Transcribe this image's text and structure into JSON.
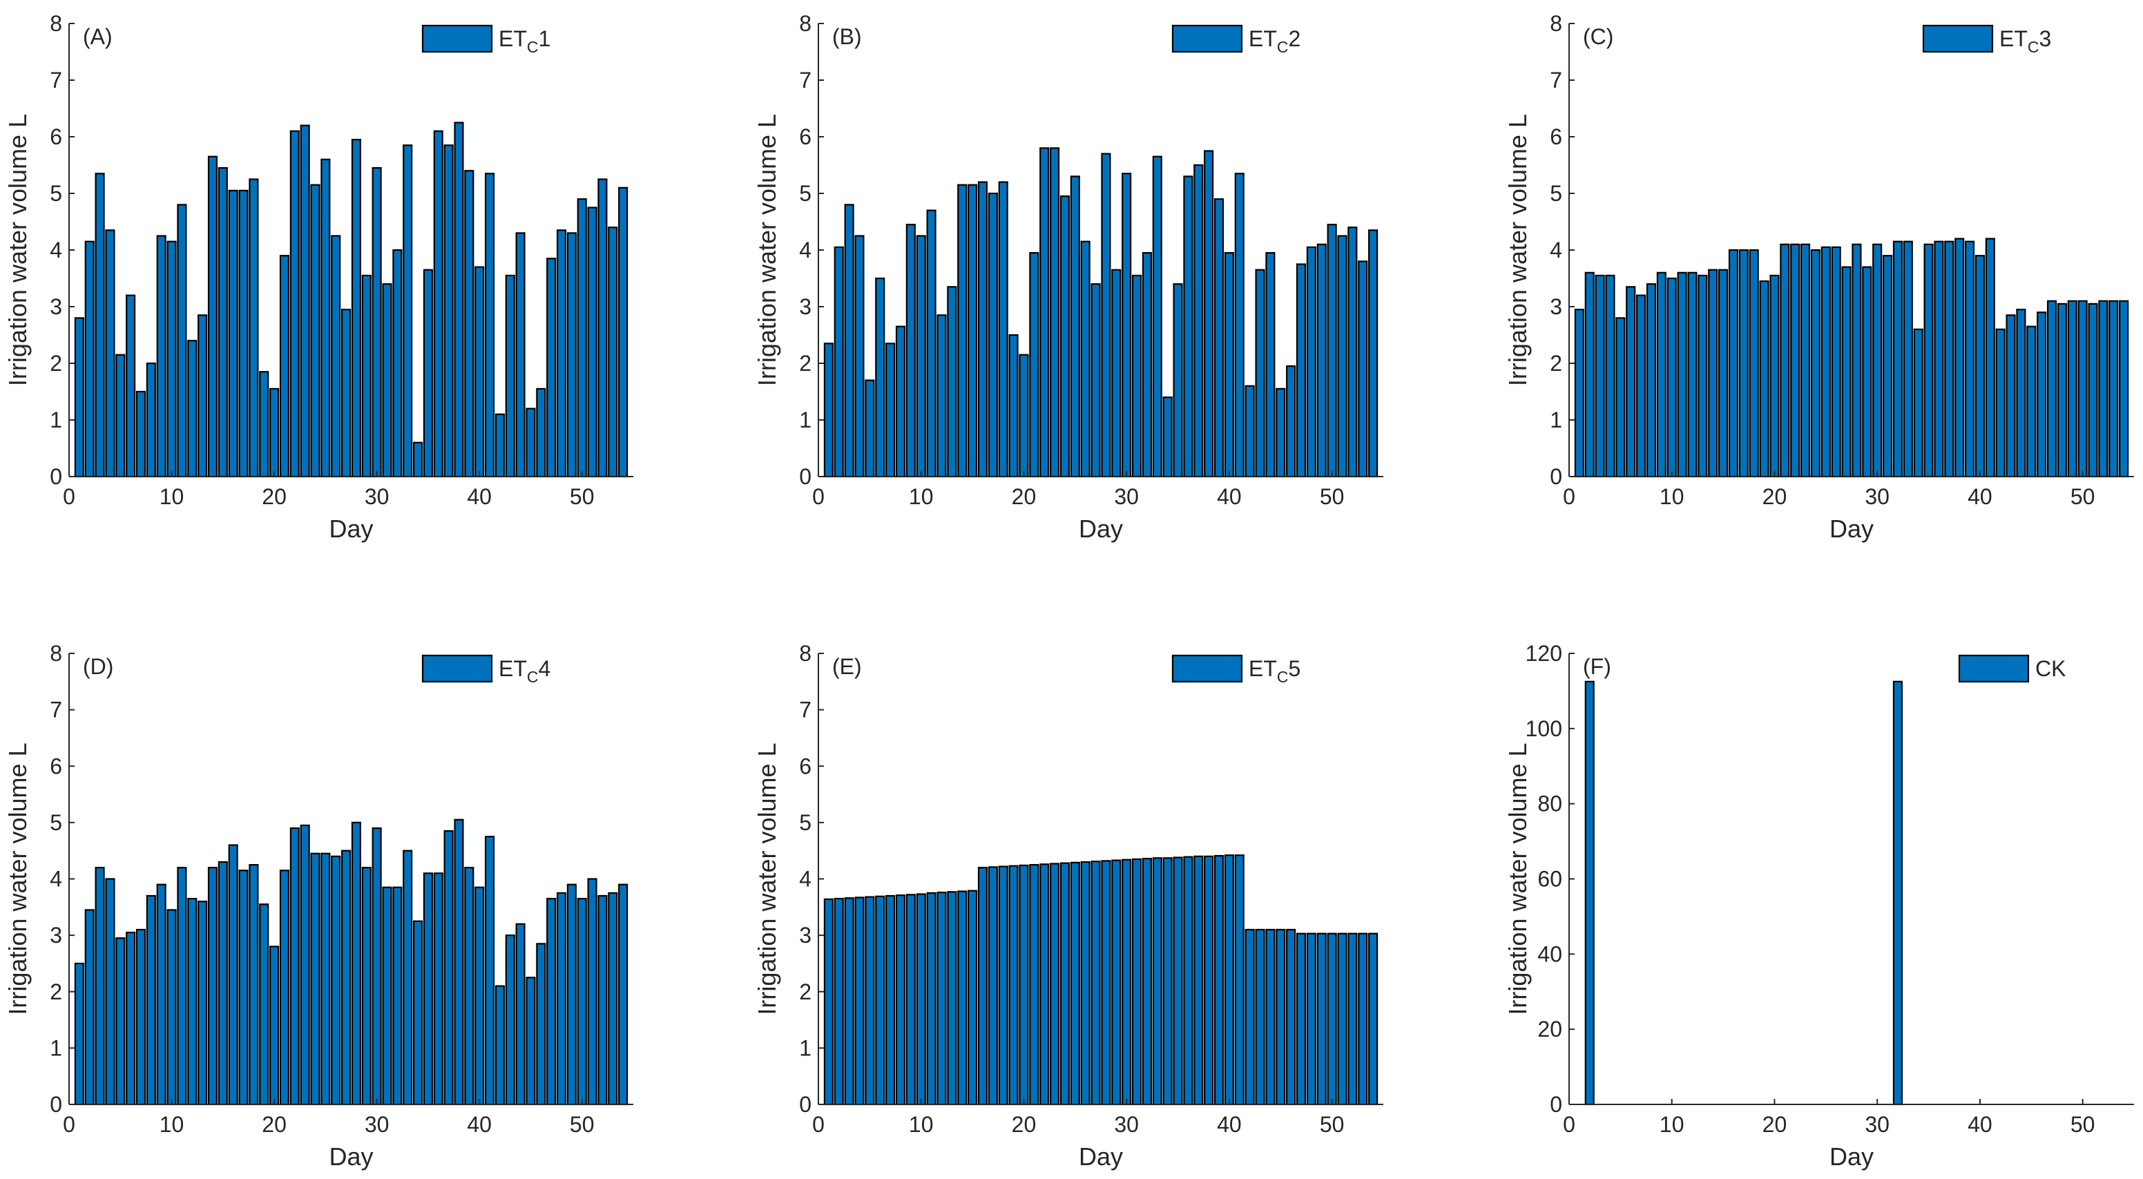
{
  "figure": {
    "bar_color": "#0072BD",
    "edge_color": "#000000",
    "axis_color": "#262626"
  },
  "chart_data": [
    {
      "type": "bar",
      "panel_label": "(A)",
      "legend": {
        "main": "ET",
        "sub": "C",
        "suffix": "1"
      },
      "xlabel": "Day",
      "ylabel": "Irrigation water volume L",
      "xlim": [
        0,
        55
      ],
      "ylim": [
        0,
        8
      ],
      "xticks": [
        0,
        10,
        20,
        30,
        40,
        50
      ],
      "yticks": [
        0,
        1,
        2,
        3,
        4,
        5,
        6,
        7,
        8
      ],
      "x": [
        1,
        2,
        3,
        4,
        5,
        6,
        7,
        8,
        9,
        10,
        11,
        12,
        13,
        14,
        15,
        16,
        17,
        18,
        19,
        20,
        21,
        22,
        23,
        24,
        25,
        26,
        27,
        28,
        29,
        30,
        31,
        32,
        33,
        34,
        35,
        36,
        37,
        38,
        39,
        40,
        41,
        42,
        43,
        44,
        45,
        46,
        47,
        48,
        49,
        50,
        51,
        52,
        53,
        54
      ],
      "values": [
        2.8,
        4.15,
        5.35,
        4.35,
        2.15,
        3.2,
        1.5,
        2.0,
        4.25,
        4.15,
        4.8,
        2.4,
        2.85,
        5.65,
        5.45,
        5.05,
        5.05,
        5.25,
        1.85,
        1.55,
        3.9,
        6.1,
        6.2,
        5.15,
        5.6,
        4.25,
        2.95,
        5.95,
        3.55,
        5.45,
        3.4,
        4.0,
        5.85,
        0.6,
        3.65,
        6.1,
        5.85,
        6.25,
        5.4,
        3.7,
        5.35,
        1.1,
        3.55,
        4.3,
        1.2,
        1.55,
        3.85,
        4.35,
        4.3,
        4.9,
        4.75,
        5.25,
        4.4,
        5.1
      ]
    },
    {
      "type": "bar",
      "panel_label": "(B)",
      "legend": {
        "main": "ET",
        "sub": "C",
        "suffix": "2"
      },
      "xlabel": "Day",
      "ylabel": "Irrigation water volume L",
      "xlim": [
        0,
        55
      ],
      "ylim": [
        0,
        8
      ],
      "xticks": [
        0,
        10,
        20,
        30,
        40,
        50
      ],
      "yticks": [
        0,
        1,
        2,
        3,
        4,
        5,
        6,
        7,
        8
      ],
      "x": [
        1,
        2,
        3,
        4,
        5,
        6,
        7,
        8,
        9,
        10,
        11,
        12,
        13,
        14,
        15,
        16,
        17,
        18,
        19,
        20,
        21,
        22,
        23,
        24,
        25,
        26,
        27,
        28,
        29,
        30,
        31,
        32,
        33,
        34,
        35,
        36,
        37,
        38,
        39,
        40,
        41,
        42,
        43,
        44,
        45,
        46,
        47,
        48,
        49,
        50,
        51,
        52,
        53,
        54
      ],
      "values": [
        2.35,
        4.05,
        4.8,
        4.25,
        1.7,
        3.5,
        2.35,
        2.65,
        4.45,
        4.25,
        4.7,
        2.85,
        3.35,
        5.15,
        5.15,
        5.2,
        5.0,
        5.2,
        2.5,
        2.15,
        3.95,
        5.8,
        5.8,
        4.95,
        5.3,
        4.15,
        3.4,
        5.7,
        3.65,
        5.35,
        3.55,
        3.95,
        5.65,
        1.4,
        3.4,
        5.3,
        5.5,
        5.75,
        4.9,
        3.95,
        5.35,
        1.6,
        3.65,
        3.95,
        1.55,
        1.95,
        3.75,
        4.05,
        4.1,
        4.45,
        4.25,
        4.4,
        3.8,
        4.35
      ]
    },
    {
      "type": "bar",
      "panel_label": "(C)",
      "legend": {
        "main": "ET",
        "sub": "C",
        "suffix": "3"
      },
      "xlabel": "Day",
      "ylabel": "Irrigation water volume L",
      "xlim": [
        0,
        55
      ],
      "ylim": [
        0,
        8
      ],
      "xticks": [
        0,
        10,
        20,
        30,
        40,
        50
      ],
      "yticks": [
        0,
        1,
        2,
        3,
        4,
        5,
        6,
        7,
        8
      ],
      "x": [
        1,
        2,
        3,
        4,
        5,
        6,
        7,
        8,
        9,
        10,
        11,
        12,
        13,
        14,
        15,
        16,
        17,
        18,
        19,
        20,
        21,
        22,
        23,
        24,
        25,
        26,
        27,
        28,
        29,
        30,
        31,
        32,
        33,
        34,
        35,
        36,
        37,
        38,
        39,
        40,
        41,
        42,
        43,
        44,
        45,
        46,
        47,
        48,
        49,
        50,
        51,
        52,
        53,
        54
      ],
      "values": [
        2.95,
        3.6,
        3.55,
        3.55,
        2.8,
        3.35,
        3.2,
        3.4,
        3.6,
        3.5,
        3.6,
        3.6,
        3.55,
        3.65,
        3.65,
        4.0,
        4.0,
        4.0,
        3.45,
        3.55,
        4.1,
        4.1,
        4.1,
        4.0,
        4.05,
        4.05,
        3.7,
        4.1,
        3.7,
        4.1,
        3.9,
        4.15,
        4.15,
        2.6,
        4.1,
        4.15,
        4.15,
        4.2,
        4.15,
        3.9,
        4.2,
        2.6,
        2.85,
        2.95,
        2.65,
        2.9,
        3.1,
        3.05,
        3.1,
        3.1,
        3.05,
        3.1,
        3.1,
        3.1
      ]
    },
    {
      "type": "bar",
      "panel_label": "(D)",
      "legend": {
        "main": "ET",
        "sub": "C",
        "suffix": "4"
      },
      "xlabel": "Day",
      "ylabel": "Irrigation water volume L",
      "xlim": [
        0,
        55
      ],
      "ylim": [
        0,
        8
      ],
      "xticks": [
        0,
        10,
        20,
        30,
        40,
        50
      ],
      "yticks": [
        0,
        1,
        2,
        3,
        4,
        5,
        6,
        7,
        8
      ],
      "x": [
        1,
        2,
        3,
        4,
        5,
        6,
        7,
        8,
        9,
        10,
        11,
        12,
        13,
        14,
        15,
        16,
        17,
        18,
        19,
        20,
        21,
        22,
        23,
        24,
        25,
        26,
        27,
        28,
        29,
        30,
        31,
        32,
        33,
        34,
        35,
        36,
        37,
        38,
        39,
        40,
        41,
        42,
        43,
        44,
        45,
        46,
        47,
        48,
        49,
        50,
        51,
        52,
        53,
        54
      ],
      "values": [
        2.5,
        3.45,
        4.2,
        4.0,
        2.95,
        3.05,
        3.1,
        3.7,
        3.9,
        3.45,
        4.2,
        3.65,
        3.6,
        4.2,
        4.3,
        4.6,
        4.15,
        4.25,
        3.55,
        2.8,
        4.15,
        4.9,
        4.95,
        4.45,
        4.45,
        4.4,
        4.5,
        5.0,
        4.2,
        4.9,
        3.85,
        3.85,
        4.5,
        3.25,
        4.1,
        4.1,
        4.85,
        5.05,
        4.2,
        3.85,
        4.75,
        2.1,
        3.0,
        3.2,
        2.25,
        2.85,
        3.65,
        3.75,
        3.9,
        3.65,
        4.0,
        3.7,
        3.75,
        3.9
      ]
    },
    {
      "type": "bar",
      "panel_label": "(E)",
      "legend": {
        "main": "ET",
        "sub": "C",
        "suffix": "5"
      },
      "xlabel": "Day",
      "ylabel": "Irrigation water volume L",
      "xlim": [
        0,
        55
      ],
      "ylim": [
        0,
        8
      ],
      "xticks": [
        0,
        10,
        20,
        30,
        40,
        50
      ],
      "yticks": [
        0,
        1,
        2,
        3,
        4,
        5,
        6,
        7,
        8
      ],
      "x": [
        1,
        2,
        3,
        4,
        5,
        6,
        7,
        8,
        9,
        10,
        11,
        12,
        13,
        14,
        15,
        16,
        17,
        18,
        19,
        20,
        21,
        22,
        23,
        24,
        25,
        26,
        27,
        28,
        29,
        30,
        31,
        32,
        33,
        34,
        35,
        36,
        37,
        38,
        39,
        40,
        41,
        42,
        43,
        44,
        45,
        46,
        47,
        48,
        49,
        50,
        51,
        52,
        53,
        54
      ],
      "values": [
        3.64,
        3.65,
        3.66,
        3.67,
        3.68,
        3.69,
        3.7,
        3.71,
        3.72,
        3.73,
        3.75,
        3.76,
        3.77,
        3.78,
        3.79,
        4.2,
        4.21,
        4.22,
        4.23,
        4.24,
        4.25,
        4.26,
        4.27,
        4.28,
        4.29,
        4.3,
        4.31,
        4.32,
        4.33,
        4.34,
        4.35,
        4.36,
        4.37,
        4.37,
        4.38,
        4.39,
        4.4,
        4.4,
        4.41,
        4.42,
        4.42,
        3.1,
        3.1,
        3.1,
        3.1,
        3.1,
        3.03,
        3.03,
        3.03,
        3.03,
        3.03,
        3.03,
        3.03,
        3.03
      ]
    },
    {
      "type": "bar",
      "panel_label": "(F)",
      "legend": {
        "main": "CK",
        "sub": "",
        "suffix": ""
      },
      "xlabel": "Day",
      "ylabel": "Irrigation water volume L",
      "xlim": [
        0,
        55
      ],
      "ylim": [
        0,
        120
      ],
      "xticks": [
        0,
        10,
        20,
        30,
        40,
        50
      ],
      "yticks": [
        0,
        20,
        40,
        60,
        80,
        100,
        120
      ],
      "x": [
        2,
        32
      ],
      "values": [
        112.5,
        112.5
      ]
    }
  ]
}
